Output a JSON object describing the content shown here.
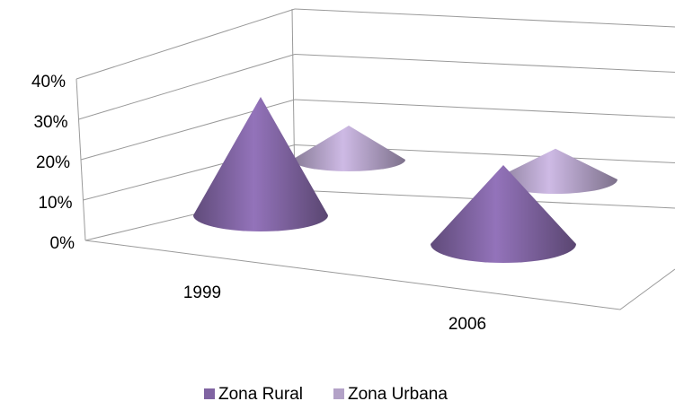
{
  "chart_data": {
    "type": "cone3d",
    "categories": [
      "1999",
      "2006"
    ],
    "series": [
      {
        "name": "Zona Rural",
        "color": "#8064a2",
        "values": [
          30,
          20
        ]
      },
      {
        "name": "Zona Urbana",
        "color": "#b3a2c7",
        "values": [
          10,
          9
        ]
      }
    ],
    "ylim": [
      0,
      40
    ],
    "yticks": [
      {
        "value": 0,
        "label": "0%"
      },
      {
        "value": 10,
        "label": "10%"
      },
      {
        "value": 20,
        "label": "20%"
      },
      {
        "value": 30,
        "label": "30%"
      },
      {
        "value": 40,
        "label": "40%"
      }
    ],
    "grid": true,
    "legend": "bottom"
  }
}
